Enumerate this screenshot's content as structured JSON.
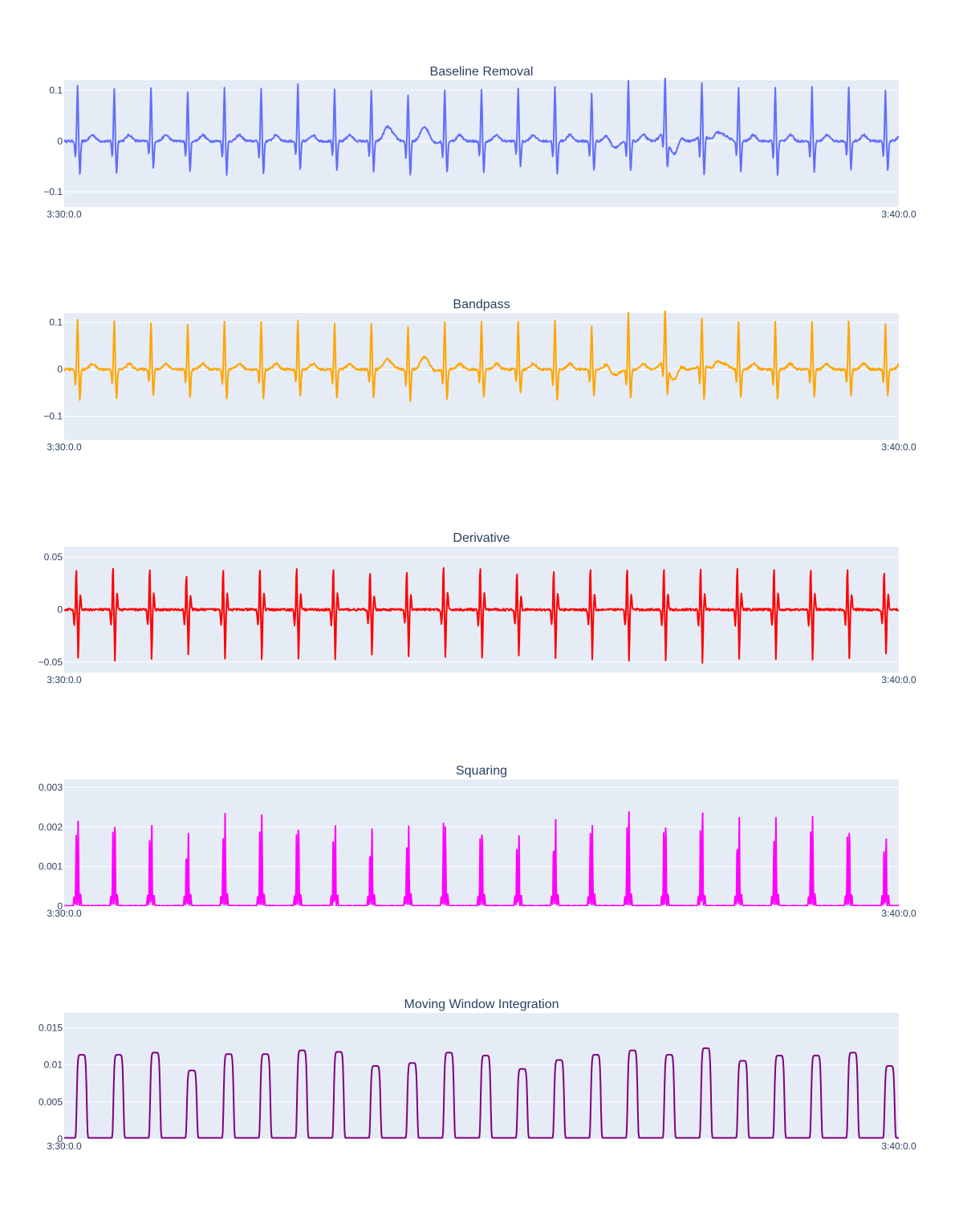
{
  "chart_data": [
    {
      "type": "line",
      "title": "Baseline Removal",
      "color": "#636efa",
      "x_range": [
        "3:30:0.0",
        "3:40:0.0"
      ],
      "ylim": [
        -0.13,
        0.12
      ],
      "yticks": [
        -0.1,
        0,
        0.1
      ],
      "ytick_labels": [
        "−0.1",
        "0",
        "0.1"
      ],
      "grid": true,
      "beat_positions": [
        0.016,
        0.06,
        0.104,
        0.148,
        0.192,
        0.236,
        0.28,
        0.324,
        0.368,
        0.412,
        0.456,
        0.5,
        0.544,
        0.588,
        0.632,
        0.676,
        0.72,
        0.764,
        0.808,
        0.852,
        0.896,
        0.94,
        0.984
      ],
      "peak_high": [
        0.108,
        0.102,
        0.106,
        0.096,
        0.106,
        0.104,
        0.112,
        0.102,
        0.098,
        0.09,
        0.102,
        0.102,
        0.102,
        0.106,
        0.094,
        0.12,
        0.12,
        0.104,
        0.104,
        0.106,
        0.106,
        0.106,
        0.1
      ],
      "peak_low": [
        -0.066,
        -0.063,
        -0.054,
        -0.06,
        -0.066,
        -0.064,
        -0.058,
        -0.06,
        -0.06,
        -0.068,
        -0.062,
        -0.062,
        -0.05,
        -0.066,
        -0.058,
        -0.06,
        -0.056,
        -0.078,
        -0.06,
        -0.066,
        -0.06,
        -0.056,
        -0.058
      ],
      "wander": [
        [
          0.39,
          0.032
        ],
        [
          0.435,
          0.043
        ],
        [
          0.44,
          -0.02
        ],
        [
          0.66,
          -0.02
        ],
        [
          0.72,
          0.03
        ],
        [
          0.73,
          -0.05
        ],
        [
          0.765,
          0.018
        ],
        [
          0.79,
          0.02
        ]
      ]
    },
    {
      "type": "line",
      "title": "Bandpass",
      "color": "#ffa500",
      "x_range": [
        "3:30:0.0",
        "3:40:0.0"
      ],
      "ylim": [
        -0.15,
        0.12
      ],
      "yticks": [
        -0.1,
        0,
        0.1
      ],
      "ytick_labels": [
        "−0.1",
        "0",
        "0.1"
      ],
      "grid": true,
      "beat_positions": [
        0.016,
        0.06,
        0.104,
        0.148,
        0.192,
        0.236,
        0.28,
        0.324,
        0.368,
        0.412,
        0.456,
        0.5,
        0.544,
        0.588,
        0.632,
        0.676,
        0.72,
        0.764,
        0.808,
        0.852,
        0.896,
        0.94,
        0.984
      ],
      "peak_high": [
        0.104,
        0.102,
        0.1,
        0.094,
        0.102,
        0.102,
        0.104,
        0.1,
        0.1,
        0.09,
        0.1,
        0.102,
        0.1,
        0.104,
        0.092,
        0.12,
        0.12,
        0.1,
        0.1,
        0.102,
        0.1,
        0.104,
        0.096
      ],
      "peak_low": [
        -0.064,
        -0.062,
        -0.056,
        -0.06,
        -0.064,
        -0.062,
        -0.058,
        -0.06,
        -0.06,
        -0.068,
        -0.062,
        -0.06,
        -0.05,
        -0.066,
        -0.058,
        -0.062,
        -0.06,
        -0.074,
        -0.06,
        -0.066,
        -0.06,
        -0.056,
        -0.058
      ],
      "wander": [
        [
          0.39,
          0.02
        ],
        [
          0.435,
          0.04
        ],
        [
          0.44,
          -0.02
        ],
        [
          0.66,
          -0.02
        ],
        [
          0.72,
          0.03
        ],
        [
          0.73,
          -0.045
        ],
        [
          0.765,
          0.015
        ],
        [
          0.79,
          0.02
        ]
      ]
    },
    {
      "type": "line",
      "title": "Derivative",
      "color": "#ff0000",
      "x_range": [
        "3:30:0.0",
        "3:40:0.0"
      ],
      "ylim": [
        -0.06,
        0.06
      ],
      "yticks": [
        -0.05,
        0,
        0.05
      ],
      "ytick_labels": [
        "−0.05",
        "0",
        "0.05"
      ],
      "grid": true,
      "beat_positions": [
        0.016,
        0.06,
        0.104,
        0.148,
        0.192,
        0.236,
        0.28,
        0.324,
        0.368,
        0.412,
        0.456,
        0.5,
        0.544,
        0.588,
        0.632,
        0.676,
        0.72,
        0.764,
        0.808,
        0.852,
        0.896,
        0.94,
        0.984
      ],
      "peak_high": [
        0.042,
        0.044,
        0.044,
        0.037,
        0.044,
        0.044,
        0.044,
        0.044,
        0.04,
        0.04,
        0.046,
        0.044,
        0.04,
        0.042,
        0.044,
        0.044,
        0.044,
        0.044,
        0.044,
        0.044,
        0.044,
        0.044,
        0.04
      ],
      "peak_low": [
        -0.048,
        -0.049,
        -0.049,
        -0.044,
        -0.048,
        -0.049,
        -0.048,
        -0.049,
        -0.045,
        -0.045,
        -0.047,
        -0.048,
        -0.045,
        -0.047,
        -0.048,
        -0.05,
        -0.05,
        -0.052,
        -0.048,
        -0.048,
        -0.048,
        -0.048,
        -0.044
      ]
    },
    {
      "type": "line",
      "title": "Squaring",
      "color": "#ff00ff",
      "x_range": [
        "3:30:0.0",
        "3:40:0.0"
      ],
      "ylim": [
        0,
        0.0032
      ],
      "yticks": [
        0,
        0.001,
        0.002,
        0.003
      ],
      "ytick_labels": [
        "0",
        "0.001",
        "0.002",
        "0.003"
      ],
      "grid": true,
      "beat_positions": [
        0.016,
        0.06,
        0.104,
        0.148,
        0.192,
        0.236,
        0.28,
        0.324,
        0.368,
        0.412,
        0.456,
        0.5,
        0.544,
        0.588,
        0.632,
        0.676,
        0.72,
        0.764,
        0.808,
        0.852,
        0.896,
        0.94,
        0.984
      ],
      "peak_high": [
        0.00226,
        0.00241,
        0.0023,
        0.00188,
        0.00233,
        0.00244,
        0.00232,
        0.00229,
        0.00199,
        0.00201,
        0.0021,
        0.00217,
        0.002,
        0.00222,
        0.00202,
        0.00252,
        0.00238,
        0.00267,
        0.00227,
        0.00222,
        0.00238,
        0.00223,
        0.00192
      ],
      "peak_low": [
        0.00178,
        0.00188,
        0.00182,
        0.0015,
        0.00182,
        0.00188,
        0.00182,
        0.00178,
        0.00156,
        0.00158,
        0.00209,
        0.00171,
        0.00158,
        0.00175,
        0.00198,
        0.00198,
        0.00187,
        0.0021,
        0.00178,
        0.00175,
        0.00187,
        0.00175,
        0.00151
      ]
    },
    {
      "type": "line",
      "title": "Moving Window Integration",
      "color": "#800080",
      "x_range": [
        "3:30:0.0",
        "3:40:0.0"
      ],
      "ylim": [
        0,
        0.017
      ],
      "yticks": [
        0,
        0.005,
        0.01,
        0.015
      ],
      "ytick_labels": [
        "0",
        "0.005",
        "0.01",
        "0.015"
      ],
      "grid": true,
      "beat_positions": [
        0.021,
        0.065,
        0.109,
        0.153,
        0.197,
        0.241,
        0.285,
        0.329,
        0.373,
        0.417,
        0.461,
        0.505,
        0.549,
        0.593,
        0.637,
        0.681,
        0.725,
        0.769,
        0.813,
        0.857,
        0.901,
        0.945,
        0.989
      ],
      "peak_high": [
        0.0112,
        0.0112,
        0.0115,
        0.0091,
        0.0113,
        0.0113,
        0.0118,
        0.0116,
        0.0097,
        0.0101,
        0.0115,
        0.0111,
        0.0093,
        0.0105,
        0.0112,
        0.0118,
        0.0112,
        0.0121,
        0.0104,
        0.0111,
        0.0111,
        0.0115,
        0.0097
      ]
    }
  ]
}
